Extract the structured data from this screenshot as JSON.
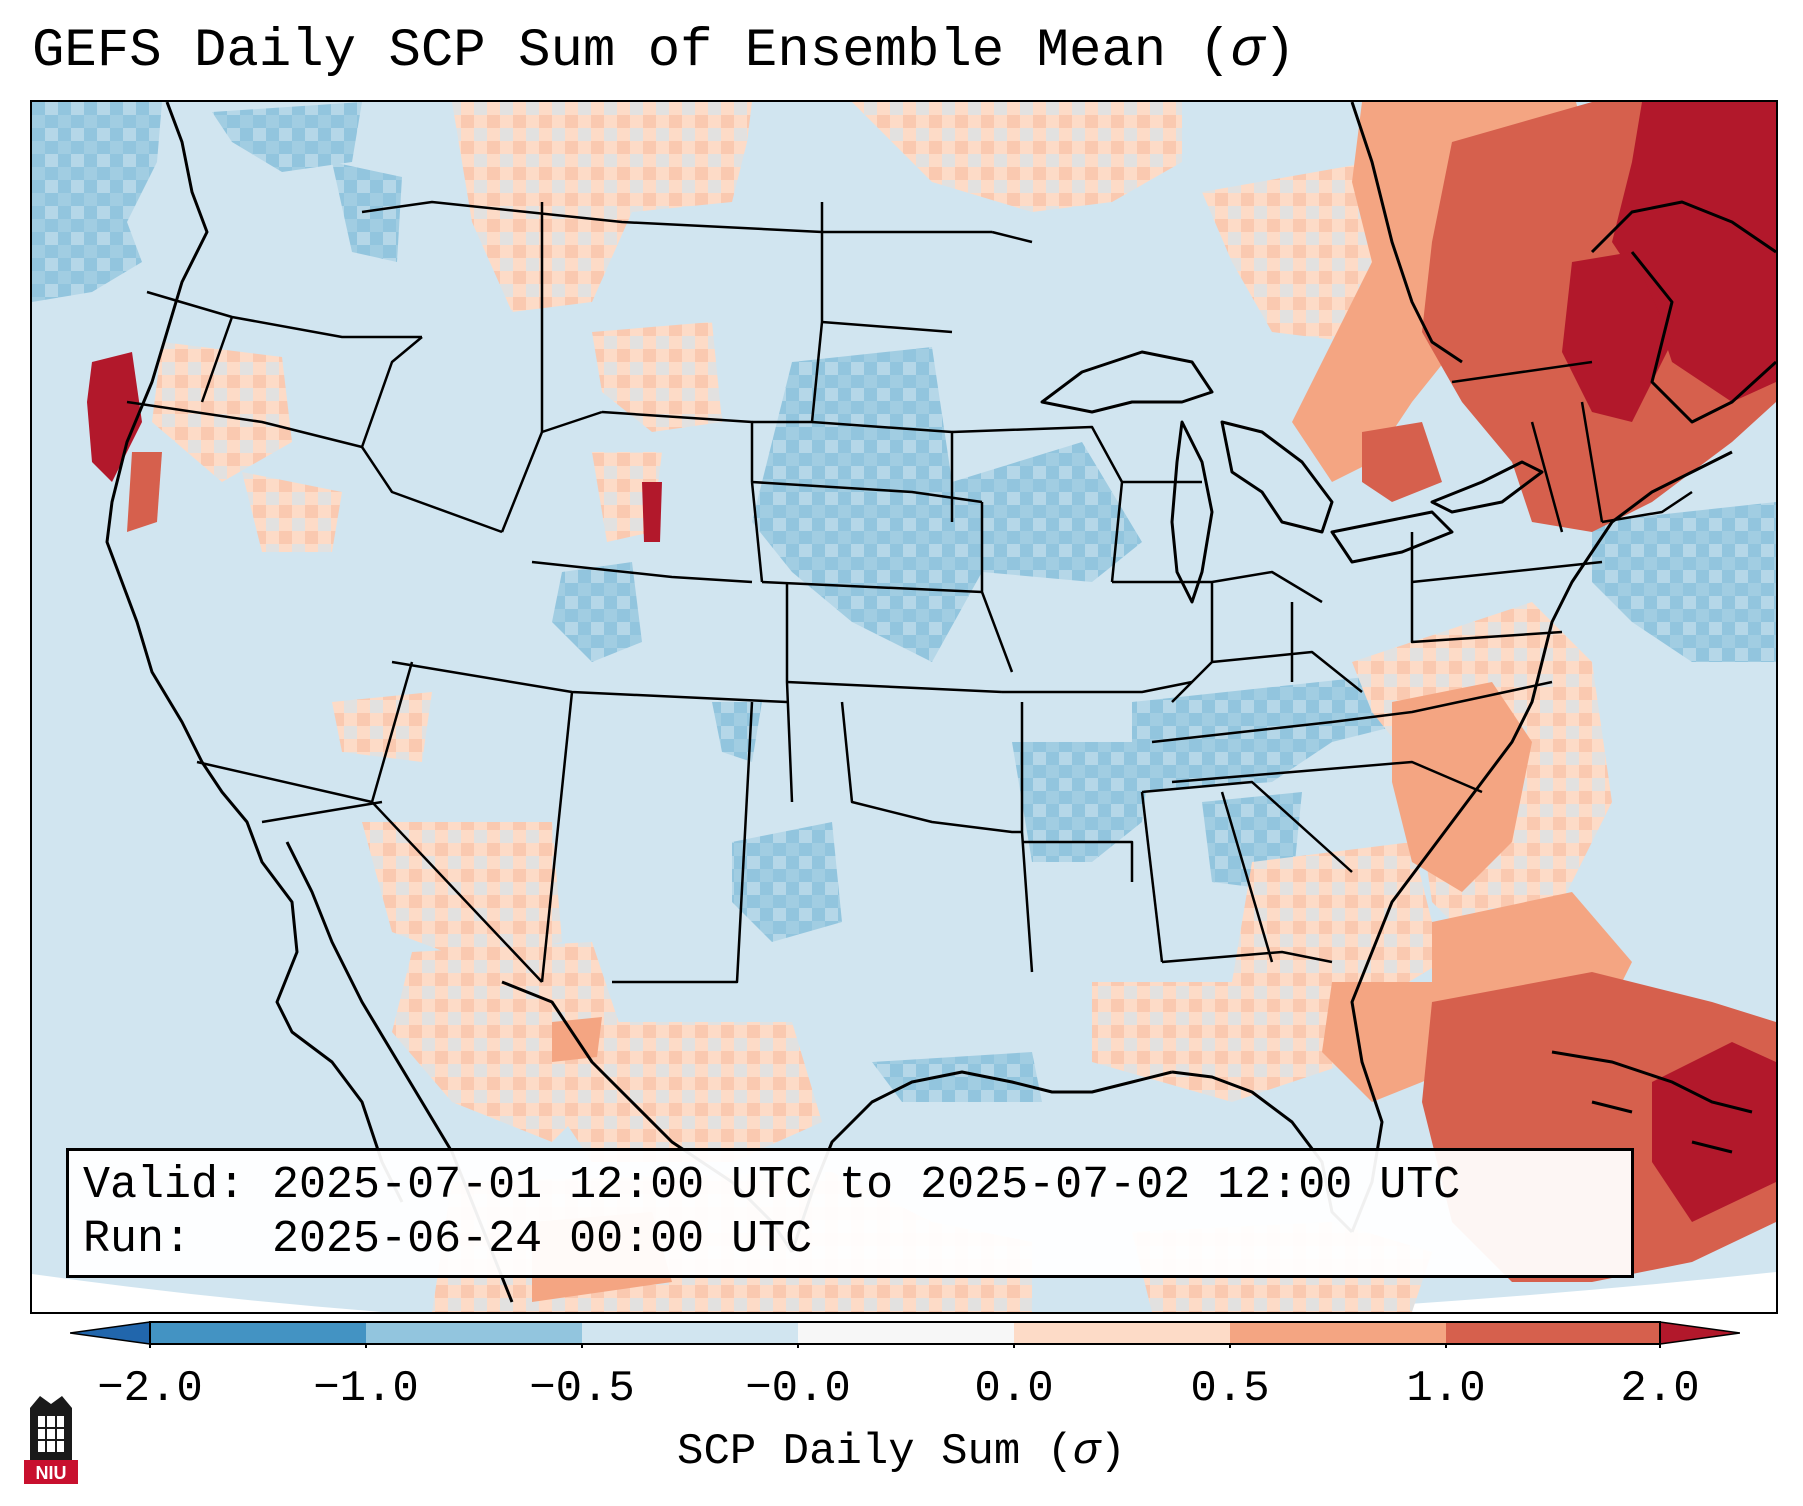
{
  "header": {
    "title_prefix": "GEFS Daily SCP Sum of Ensemble Mean (",
    "title_symbol": "σ",
    "title_suffix": ")"
  },
  "info_box": {
    "valid_label": "Valid:",
    "valid_text": "2025-07-01 12:00 UTC to 2025-07-02 12:00 UTC",
    "run_label": "Run:",
    "run_text": "2025-06-24 00:00 UTC"
  },
  "colorbar": {
    "ticks": [
      "−2.0",
      "−1.0",
      "−0.5",
      "−0.0",
      "0.0",
      "0.5",
      "1.0",
      "2.0"
    ],
    "label_prefix": "SCP Daily Sum (",
    "label_symbol": "σ",
    "label_suffix": ")",
    "bin_colors": [
      "#4393c3",
      "#92c5de",
      "#d1e5f0",
      "#f7f7f7",
      "#fddbc7",
      "#f4a582",
      "#d6604d"
    ],
    "under_color": "#2166ac",
    "over_color": "#b2182b",
    "extend": "both"
  },
  "map_data": {
    "projection": "Lambert Conformal (CONUS)",
    "field_colors": {
      "very_negative": "#92c5de",
      "negative": "#d1e5f0",
      "positive": "#fddbc7",
      "moderate": "#f4a582",
      "strong": "#d6604d",
      "extreme": "#b2182b"
    }
  },
  "logo": {
    "text": "NIU",
    "color": "#c8102e"
  }
}
